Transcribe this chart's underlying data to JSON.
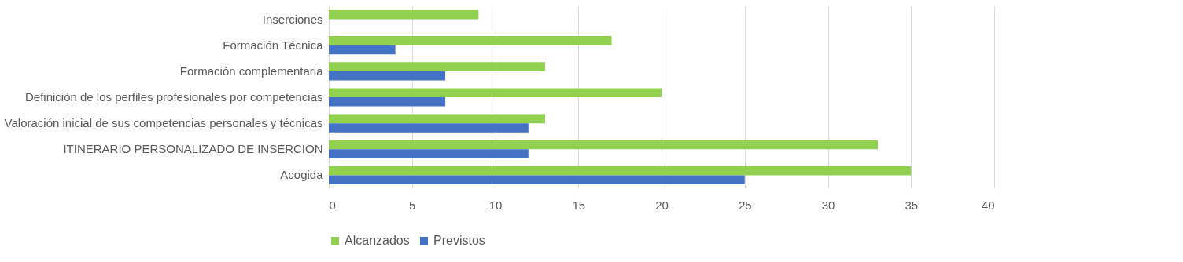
{
  "chart_data": {
    "type": "bar",
    "orientation": "horizontal",
    "categories": [
      "Inserciones",
      "Formación Técnica",
      "Formación complementaria",
      "Definición de los perfiles profesionales por competencias",
      "Valoración inicial de sus competencias personales y técnicas",
      "ITINERARIO PERSONALIZADO DE INSERCION",
      "Acogida"
    ],
    "series": [
      {
        "name": "Alcanzados",
        "color": "#92d050",
        "values": [
          9,
          17,
          13,
          20,
          13,
          33,
          35
        ]
      },
      {
        "name": "Previstos",
        "color": "#4472c4",
        "values": [
          null,
          4,
          7,
          7,
          12,
          12,
          25
        ]
      }
    ],
    "xlim": [
      0,
      40
    ],
    "xticks": [
      0,
      5,
      10,
      15,
      20,
      25,
      30,
      35,
      40
    ],
    "grid": "x",
    "legend": "bottom"
  }
}
